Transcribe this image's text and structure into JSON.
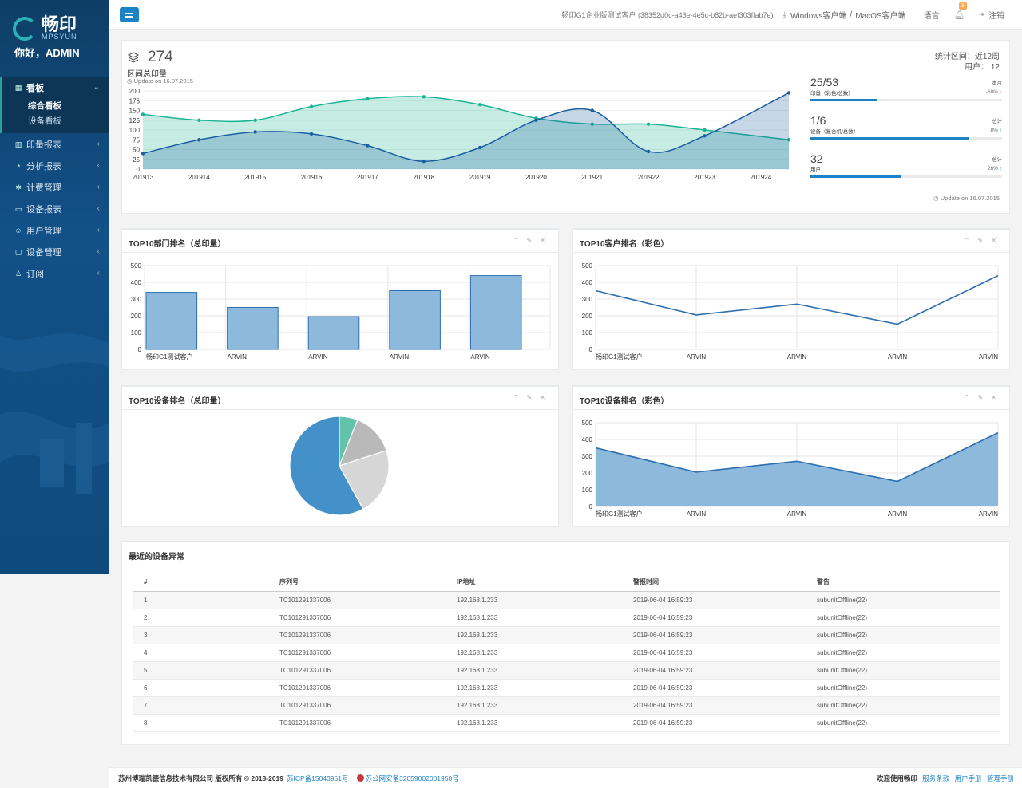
{
  "sidebar": {
    "logo_cn": "畅印",
    "logo_en": "MPSYUN",
    "greeting": "你好，ADMIN",
    "items": [
      {
        "label": "看板",
        "icon": "grid-icon",
        "sub": [
          {
            "label": "综合看板"
          },
          {
            "label": "设备看板"
          }
        ]
      },
      {
        "label": "印量报表",
        "icon": "bar-chart-icon"
      },
      {
        "label": "分析报表",
        "icon": "pie-icon"
      },
      {
        "label": "计费管理",
        "icon": "gear-icon"
      },
      {
        "label": "设备报表",
        "icon": "device-icon"
      },
      {
        "label": "用户管理",
        "icon": "users-icon"
      },
      {
        "label": "设备管理",
        "icon": "monitor-icon"
      },
      {
        "label": "订阅",
        "icon": "user-icon"
      }
    ]
  },
  "topbar": {
    "tenant": "畅印G1企业版测试客户 (38352d0c-a43e-4e5c-b82b-aef303ffab7e)",
    "download_windows": "Windows客户端",
    "download_sep": "/",
    "download_mac": "MacOS客户端",
    "language": "语言",
    "notification_count": "3",
    "logout": "注销"
  },
  "stats": {
    "total": "274",
    "total_label": "区间总印量",
    "updated": "Update on 16.07.2015",
    "range_label": "统计区间：近12周",
    "users_label": "用户：  12",
    "kpis": [
      {
        "value": "25/53",
        "sub": "印量（彩色/总数）",
        "period": "本月",
        "change": "-68%",
        "dir": "down",
        "fill": 0.35
      },
      {
        "value": "1/6",
        "sub": "设备（复合机/总数）",
        "period": "总计",
        "change": "8%",
        "dir": "up",
        "fill": 0.83
      },
      {
        "value": "32",
        "sub": "用户",
        "period": "总计",
        "change": "26%",
        "dir": "up",
        "fill": 0.47
      }
    ],
    "updated2": "Update on 16.07.2015"
  },
  "boxes": {
    "b1_title": "TOP10部门排名（总印量）",
    "b2_title": "TOP10客户排名（彩色）",
    "b3_title": "TOP10设备排名（总印量）",
    "b4_title": "TOP10设备排名（彩色）",
    "b5_title": "最近的设备异常",
    "tools": "⌃ ✎ ✕"
  },
  "chart_data": [
    {
      "type": "area",
      "x": [
        "201913",
        "201914",
        "201915",
        "201916",
        "201917",
        "201918",
        "201919",
        "201920",
        "201921",
        "201922",
        "201923",
        "201924"
      ],
      "ylim": [
        0,
        200
      ],
      "yticks": [
        0,
        25,
        50,
        75,
        100,
        125,
        150,
        175,
        200
      ],
      "series": [
        {
          "values": [
            140,
            125,
            125,
            160,
            180,
            185,
            165,
            130,
            115,
            115,
            100,
            75
          ],
          "color": "#1ab394"
        },
        {
          "values": [
            40,
            75,
            95,
            90,
            60,
            20,
            55,
            125,
            150,
            45,
            85,
            195
          ],
          "color": "#1c5fa0"
        }
      ]
    },
    {
      "type": "bar",
      "categories": [
        "畅印G1测试客户",
        "ARVIN",
        "ARVIN",
        "ARVIN",
        "ARVIN"
      ],
      "values": [
        340,
        250,
        195,
        350,
        440
      ],
      "ylim": [
        0,
        500
      ],
      "yticks": [
        0,
        100,
        200,
        300,
        400,
        500
      ]
    },
    {
      "type": "line",
      "categories": [
        "畅印G1测试客户",
        "ARVIN",
        "ARVIN",
        "ARVIN",
        "ARVIN"
      ],
      "values": [
        350,
        205,
        270,
        150,
        440
      ],
      "ylim": [
        0,
        500
      ],
      "yticks": [
        0,
        100,
        200,
        300,
        400,
        500
      ]
    },
    {
      "type": "pie",
      "values": [
        58,
        6,
        14,
        22
      ],
      "colors": [
        "#4391c8",
        "#62c3aa",
        "#b9b9b9",
        "#d6d6d6"
      ]
    },
    {
      "type": "area",
      "categories": [
        "畅印G1测试客户",
        "ARVIN",
        "ARVIN",
        "ARVIN",
        "ARVIN"
      ],
      "values": [
        350,
        205,
        270,
        150,
        440
      ],
      "ylim": [
        0,
        500
      ],
      "yticks": [
        0,
        100,
        200,
        300,
        400,
        500
      ]
    }
  ],
  "alerts": {
    "columns": [
      "#",
      "序列号",
      "IP地址",
      "警报时间",
      "警告"
    ],
    "rows": [
      [
        "1",
        "TC101291337006",
        "192.168.1.233",
        "2019-06-04  16:59:23",
        "subunitOffline(22)"
      ],
      [
        "2",
        "TC101291337006",
        "192.168.1.233",
        "2019-06-04  16:59:23",
        "subunitOffline(22)"
      ],
      [
        "3",
        "TC101291337006",
        "192.168.1.233",
        "2019-06-04  16:59:23",
        "subunitOffline(22)"
      ],
      [
        "4",
        "TC101291337006",
        "192.168.1.233",
        "2019-06-04  16:59:23",
        "subunitOffline(22)"
      ],
      [
        "5",
        "TC101291337006",
        "192.168.1.233",
        "2019-06-04  16:59:23",
        "subunitOffline(22)"
      ],
      [
        "6",
        "TC101291337006",
        "192.168.1.233",
        "2019-06-04  16:59:23",
        "subunitOffline(22)"
      ],
      [
        "7",
        "TC101291337006",
        "192.168.1.233",
        "2019-06-04  16:59:23",
        "subunitOffline(22)"
      ],
      [
        "8",
        "TC101291337006",
        "192.168.1.233",
        "2019-06-04  16:59:23",
        "subunitOffline(22)"
      ]
    ]
  },
  "footer": {
    "copyright": "苏州博瑞凯德信息技术有限公司 版权所有 © 2018-2019",
    "icp": "苏ICP备15043951号",
    "police": "苏公网安备32059002001950号",
    "welcome": "欢迎使用畅印",
    "terms": "服务条款",
    "user_manual": "用户手册",
    "admin_manual": "管理手册"
  }
}
